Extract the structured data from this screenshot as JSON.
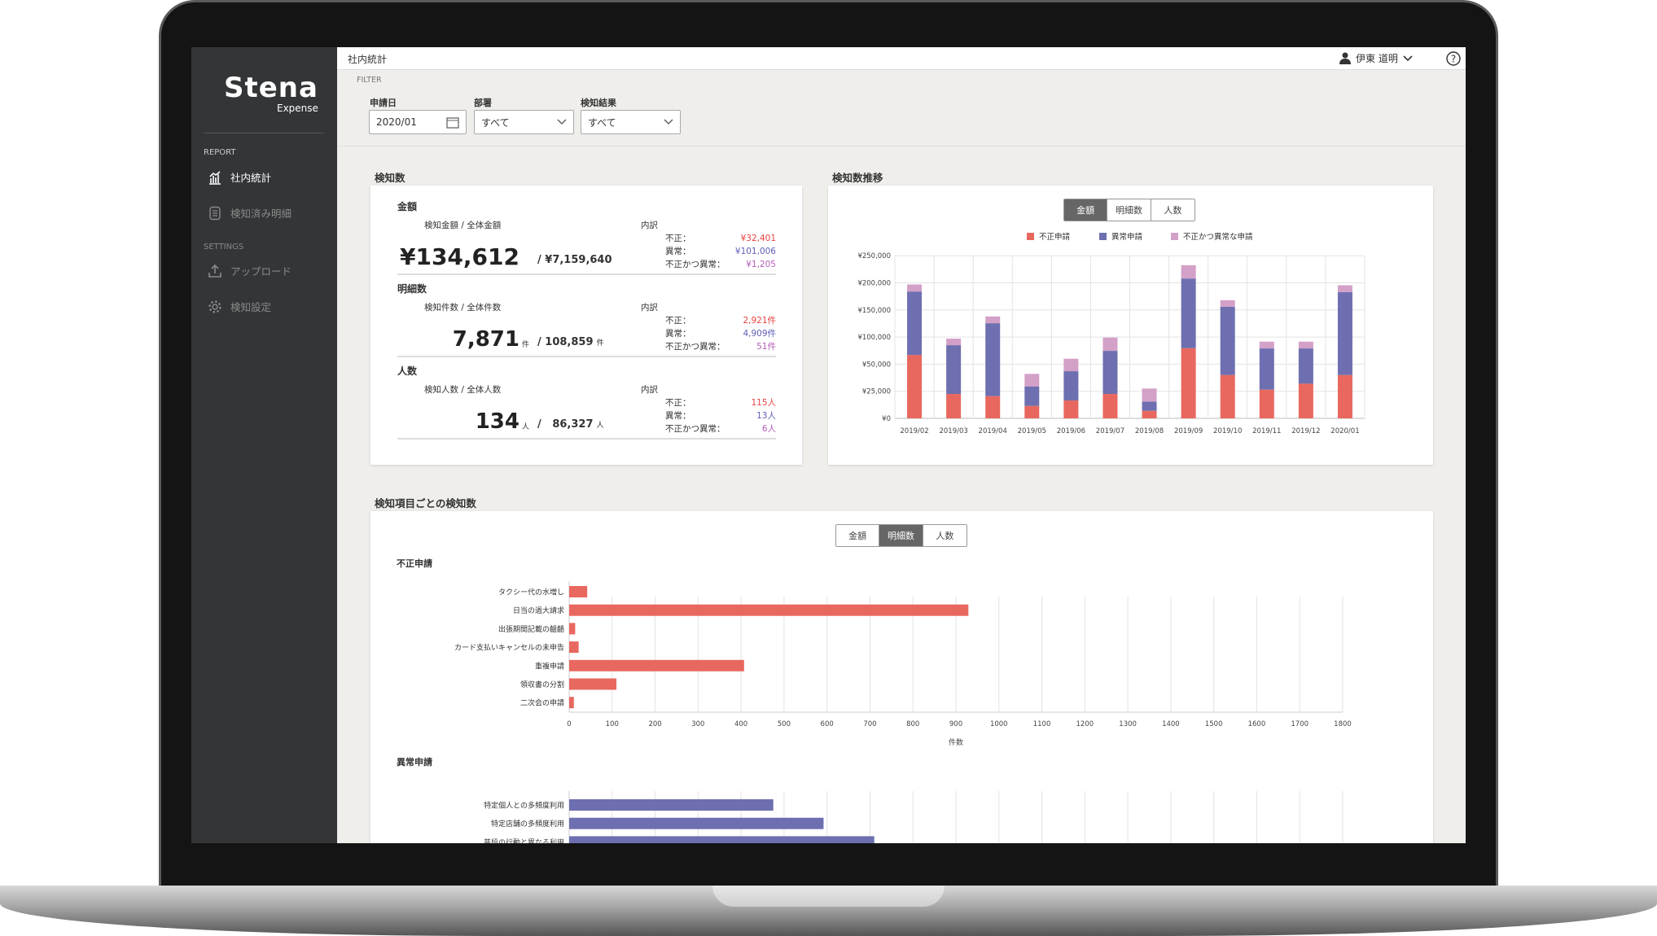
{
  "sidebar": {
    "logo": "Stena",
    "logo_sub": "Expense",
    "report_label": "REPORT",
    "settings_label": "SETTINGS",
    "items": [
      {
        "label": "社内統計",
        "icon": "chart-icon"
      },
      {
        "label": "検知済み明細",
        "icon": "document-icon"
      },
      {
        "label": "アップロード",
        "icon": "upload-icon"
      },
      {
        "label": "検知設定",
        "icon": "gear-icon"
      }
    ]
  },
  "header": {
    "title": "社内統計",
    "user": "伊東 道明"
  },
  "filter": {
    "label": "FILTER",
    "date_label": "申請日",
    "date_value": "2020/01",
    "dept_label": "部署",
    "dept_value": "すべて",
    "result_label": "検知結果",
    "result_value": "すべて"
  },
  "summary": {
    "title": "検知数",
    "breakdown_label": "内訳",
    "rows": [
      {
        "heading": "金額",
        "sub": "検知金額 / 全体金額",
        "value": "¥134,612",
        "unit": "",
        "total": "/ ¥7,159,640",
        "total_unit": "",
        "fraud_label": "不正：",
        "fraud": "¥32,401",
        "abn_label": "異常：",
        "abn": "¥101,006",
        "both_label": "不正かつ異常：",
        "both": "¥1,205"
      },
      {
        "heading": "明細数",
        "sub": "検知件数 / 全体件数",
        "value": "7,871",
        "unit": "件",
        "total": "/ 108,859",
        "total_unit": "件",
        "fraud_label": "不正：",
        "fraud": "2,921件",
        "abn_label": "異常：",
        "abn": "4,909件",
        "both_label": "不正かつ異常：",
        "both": "51件"
      },
      {
        "heading": "人数",
        "sub": "検知人数 / 全体人数",
        "value": "134",
        "unit": "人",
        "total": "/   86,327",
        "total_unit": "人",
        "fraud_label": "不正：",
        "fraud": "115人",
        "abn_label": "異常：",
        "abn": "13人",
        "both_label": "不正かつ異常：",
        "both": "6人"
      }
    ]
  },
  "colors": {
    "fraud": "#e8685f",
    "abnormal": "#6e6fb0",
    "both": "#d3a0c8",
    "fraud_text": "#e8423f",
    "abnormal_text": "#5d5eb5",
    "both_text": "#b35cb8"
  },
  "trend": {
    "title": "検知数推移",
    "tabs": [
      "金額",
      "明細数",
      "人数"
    ],
    "active_tab": 0
  },
  "detail": {
    "title": "検知項目ごとの検知数",
    "tabs": [
      "金額",
      "明細数",
      "人数"
    ],
    "active_tab": 1
  },
  "chart_data": [
    {
      "type": "bar",
      "stacked": true,
      "categories": [
        "2019/02",
        "2019/03",
        "2019/04",
        "2019/05",
        "2019/06",
        "2019/07",
        "2019/08",
        "2019/09",
        "2019/10",
        "2019/11",
        "2019/12",
        "2020/01"
      ],
      "series": [
        {
          "name": "不正申請",
          "values": [
            67000,
            22500,
            20500,
            11500,
            16500,
            22500,
            7000,
            79500,
            40000,
            26500,
            32000,
            40000
          ]
        },
        {
          "name": "異常申請",
          "values": [
            117000,
            62500,
            105000,
            18000,
            27000,
            52000,
            8500,
            128500,
            116000,
            52500,
            47000,
            143000
          ]
        },
        {
          "name": "不正かつ異常な申請",
          "values": [
            13000,
            12000,
            12500,
            11500,
            16500,
            24500,
            12000,
            24500,
            12000,
            12500,
            12500,
            12500
          ]
        }
      ],
      "yticks": [
        "¥0",
        "¥25,000",
        "¥50,000",
        "¥100,000",
        "¥150,000",
        "¥200,000",
        "¥250,000"
      ],
      "ytick_values": [
        0,
        25000,
        50000,
        100000,
        150000,
        200000,
        250000
      ],
      "legend": "top",
      "grid": true
    },
    {
      "type": "bar",
      "orientation": "horizontal",
      "title": "不正申請",
      "xlabel": "件数",
      "xlim": [
        0,
        1800
      ],
      "xticks": [
        "0",
        "100",
        "200",
        "300",
        "400",
        "500",
        "600",
        "700",
        "800",
        "900",
        "1000",
        "1100",
        "1200",
        "1300",
        "1400",
        "1500",
        "1600",
        "1700",
        "1800"
      ],
      "categories": [
        "タクシー代の水増し",
        "日当の過大請求",
        "出張期間記載の齟齬",
        "カード支払いキャンセルの未申告",
        "重複申請",
        "領収書の分割",
        "二次会の申請"
      ],
      "values": [
        42,
        929,
        14,
        22,
        407,
        110,
        11
      ],
      "grid": true
    },
    {
      "type": "bar",
      "orientation": "horizontal",
      "title": "異常申請",
      "xlim": [
        0,
        1800
      ],
      "categories": [
        "特定個人との多頻度利用",
        "特定店舗の多頻度利用",
        "普段の行動と異なる利用"
      ],
      "values": [
        475,
        592,
        710
      ],
      "grid": true
    }
  ]
}
